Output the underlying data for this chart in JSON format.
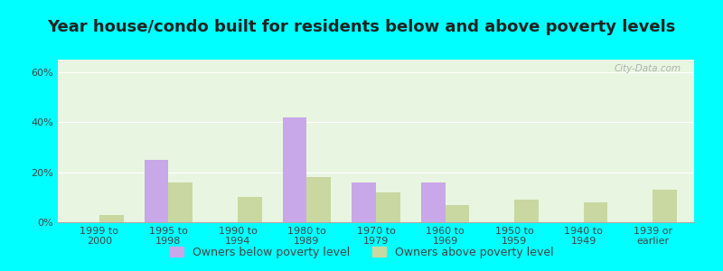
{
  "title": "Year house/condo built for residents below and above poverty levels",
  "categories": [
    "1999 to\n2000",
    "1995 to\n1998",
    "1990 to\n1994",
    "1980 to\n1989",
    "1970 to\n1979",
    "1960 to\n1969",
    "1950 to\n1959",
    "1940 to\n1949",
    "1939 or\nearlier"
  ],
  "below_poverty": [
    0,
    25,
    0,
    42,
    16,
    16,
    0,
    0,
    0
  ],
  "above_poverty": [
    3,
    16,
    10,
    18,
    12,
    7,
    9,
    8,
    13
  ],
  "below_color": "#c8a8e8",
  "above_color": "#c8d8a0",
  "ylim": [
    0,
    65
  ],
  "yticks": [
    0,
    20,
    40,
    60
  ],
  "ytick_labels": [
    "0%",
    "20%",
    "40%",
    "60%"
  ],
  "bar_width": 0.35,
  "plot_bg": "#e8f5e0",
  "outer_background": "#00ffff",
  "legend_below": "Owners below poverty level",
  "legend_above": "Owners above poverty level",
  "title_fontsize": 13,
  "tick_fontsize": 8,
  "legend_fontsize": 9,
  "watermark": "City-Data.com"
}
